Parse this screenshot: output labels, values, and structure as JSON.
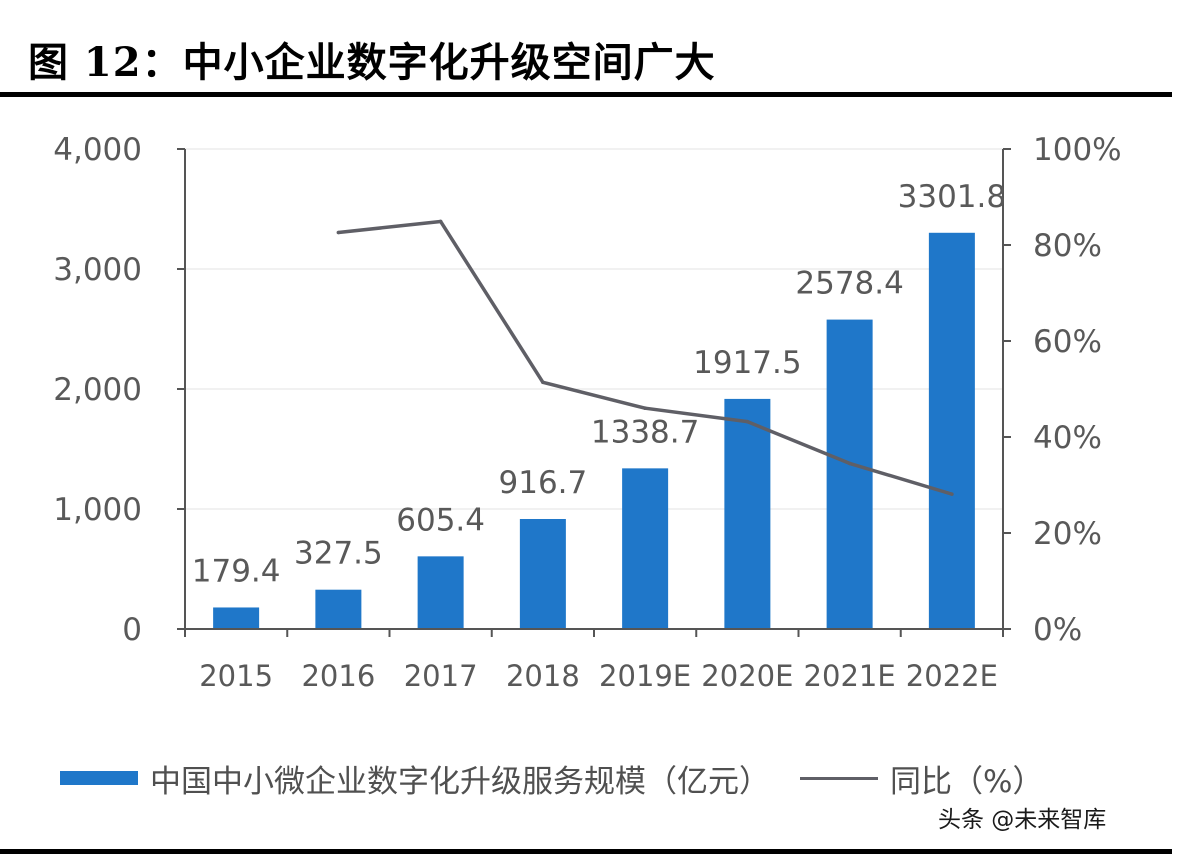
{
  "figure_title": "图 12：中小企业数字化升级空间广大",
  "watermark": "头条 @未来智库",
  "colors": {
    "bar": "#1f77c9",
    "line": "#5f5f66",
    "axis": "#555555",
    "text": "#595959"
  },
  "chart_data": {
    "type": "bar",
    "categories": [
      "2015",
      "2016",
      "2017",
      "2018",
      "2019E",
      "2020E",
      "2021E",
      "2022E"
    ],
    "series": [
      {
        "name": "中国中小微企业数字化升级服务规模（亿元）",
        "type": "bar",
        "axis": "left",
        "values": [
          179.4,
          327.5,
          605.4,
          916.7,
          1338.7,
          1917.5,
          2578.4,
          3301.8
        ],
        "labels": [
          "179.4",
          "327.5",
          "605.4",
          "916.7",
          "1338.7",
          "1917.5",
          "2578.4",
          "3301.8"
        ]
      },
      {
        "name": "同比（%）",
        "type": "line",
        "axis": "right",
        "values": [
          null,
          82.6,
          84.9,
          51.4,
          46.0,
          43.2,
          34.5,
          28.1
        ]
      }
    ],
    "y_left": {
      "min": 0,
      "max": 4000,
      "ticks": [
        0,
        1000,
        2000,
        3000,
        4000
      ],
      "tick_labels": [
        "0",
        "1,000",
        "2,000",
        "3,000",
        "4,000"
      ]
    },
    "y_right": {
      "min": 0,
      "max": 100,
      "ticks": [
        0,
        20,
        40,
        60,
        80,
        100
      ],
      "tick_labels": [
        "0%",
        "20%",
        "40%",
        "60%",
        "80%",
        "100%"
      ]
    },
    "grid": true,
    "legend_position": "bottom"
  }
}
